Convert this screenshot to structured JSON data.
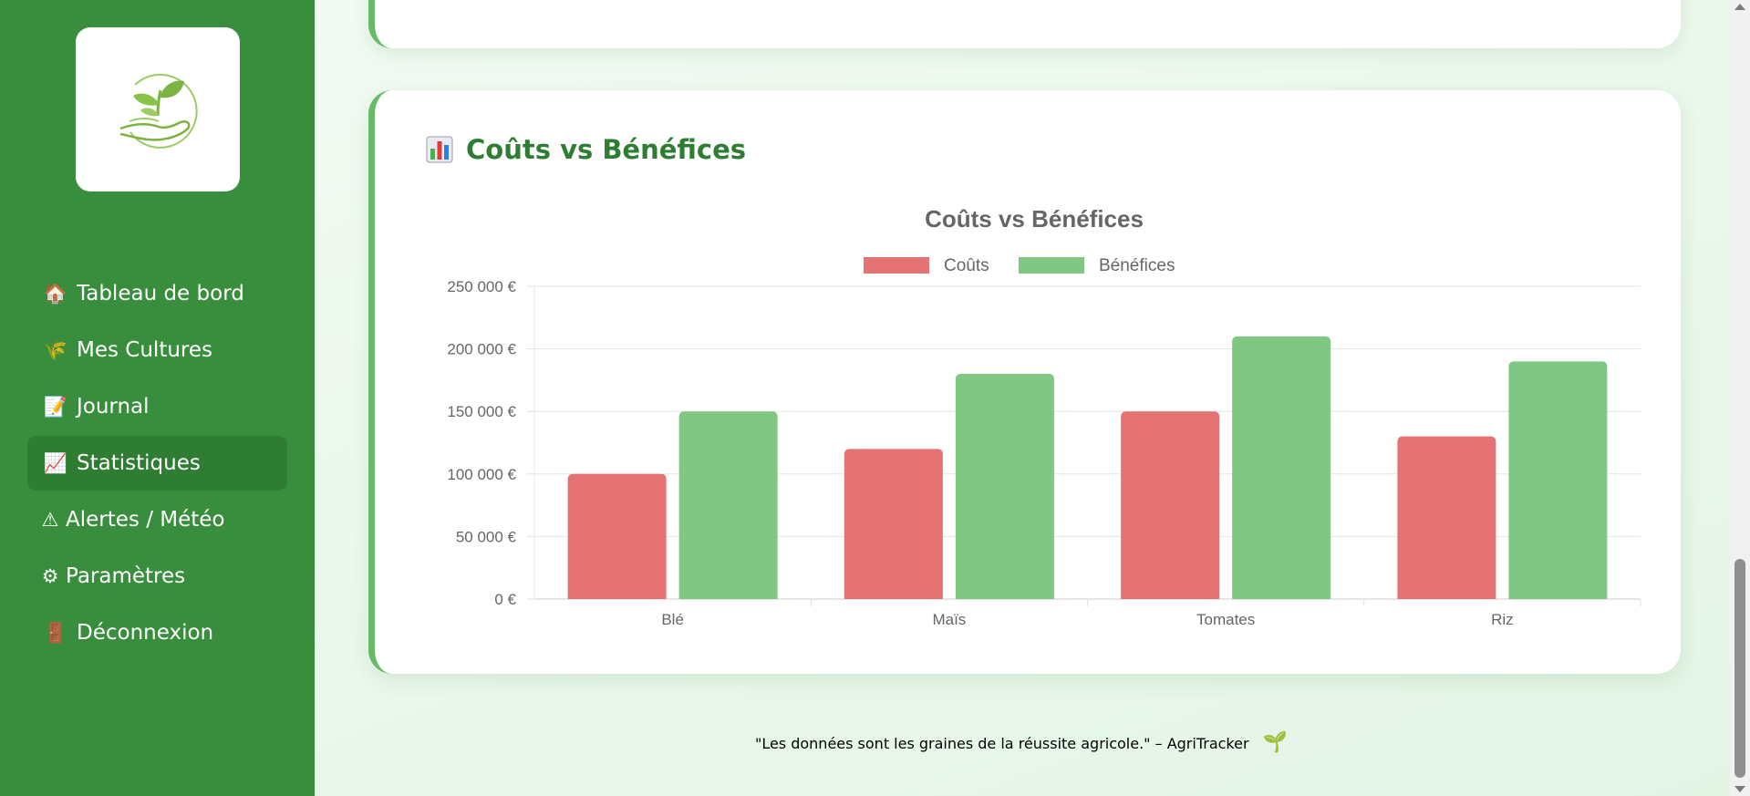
{
  "sidebar": {
    "items": [
      {
        "icon": "🏠",
        "icon_name": "house-icon",
        "label": "Tableau de bord",
        "active": false
      },
      {
        "icon": "🌾",
        "icon_name": "wheat-icon",
        "label": "Mes Cultures",
        "active": false
      },
      {
        "icon": "📝",
        "icon_name": "memo-icon",
        "label": "Journal",
        "active": false
      },
      {
        "icon": "📈",
        "icon_name": "chart-increasing-icon",
        "label": "Statistiques",
        "active": true
      },
      {
        "icon": "⚠",
        "icon_name": "warning-icon",
        "label": "Alertes / Météo",
        "active": false
      },
      {
        "icon": "⚙",
        "icon_name": "gear-icon",
        "label": "Paramètres",
        "active": false
      },
      {
        "icon": "🚪",
        "icon_name": "door-icon",
        "label": "Déconnexion",
        "active": false
      }
    ]
  },
  "section": {
    "title": "Coûts vs Bénéfices",
    "icon_name": "bar-chart-icon"
  },
  "chart_data": {
    "type": "bar",
    "title": "Coûts vs Bénéfices",
    "categories": [
      "Blé",
      "Maïs",
      "Tomates",
      "Riz"
    ],
    "series": [
      {
        "name": "Coûts",
        "color": "#e57373",
        "values": [
          100000,
          120000,
          150000,
          130000
        ]
      },
      {
        "name": "Bénéfices",
        "color": "#81c784",
        "values": [
          150000,
          180000,
          210000,
          190000
        ]
      }
    ],
    "ylim": [
      0,
      250000
    ],
    "yticks": [
      "0 €",
      "50 000 €",
      "100 000 €",
      "150 000 €",
      "200 000 €",
      "250 000 €"
    ],
    "ytick_values": [
      0,
      50000,
      100000,
      150000,
      200000,
      250000
    ],
    "legend_position": "top-center",
    "grid": true
  },
  "quote": {
    "text": "\"Les données sont les graines de la réussite agricole.\" – AgriTracker",
    "icon": "🌱",
    "icon_name": "seedling-icon"
  },
  "colors": {
    "sidebar": "#388e3c",
    "active_item": "#2e7d32",
    "accent": "#66bb6a",
    "title": "#2e7d32"
  }
}
